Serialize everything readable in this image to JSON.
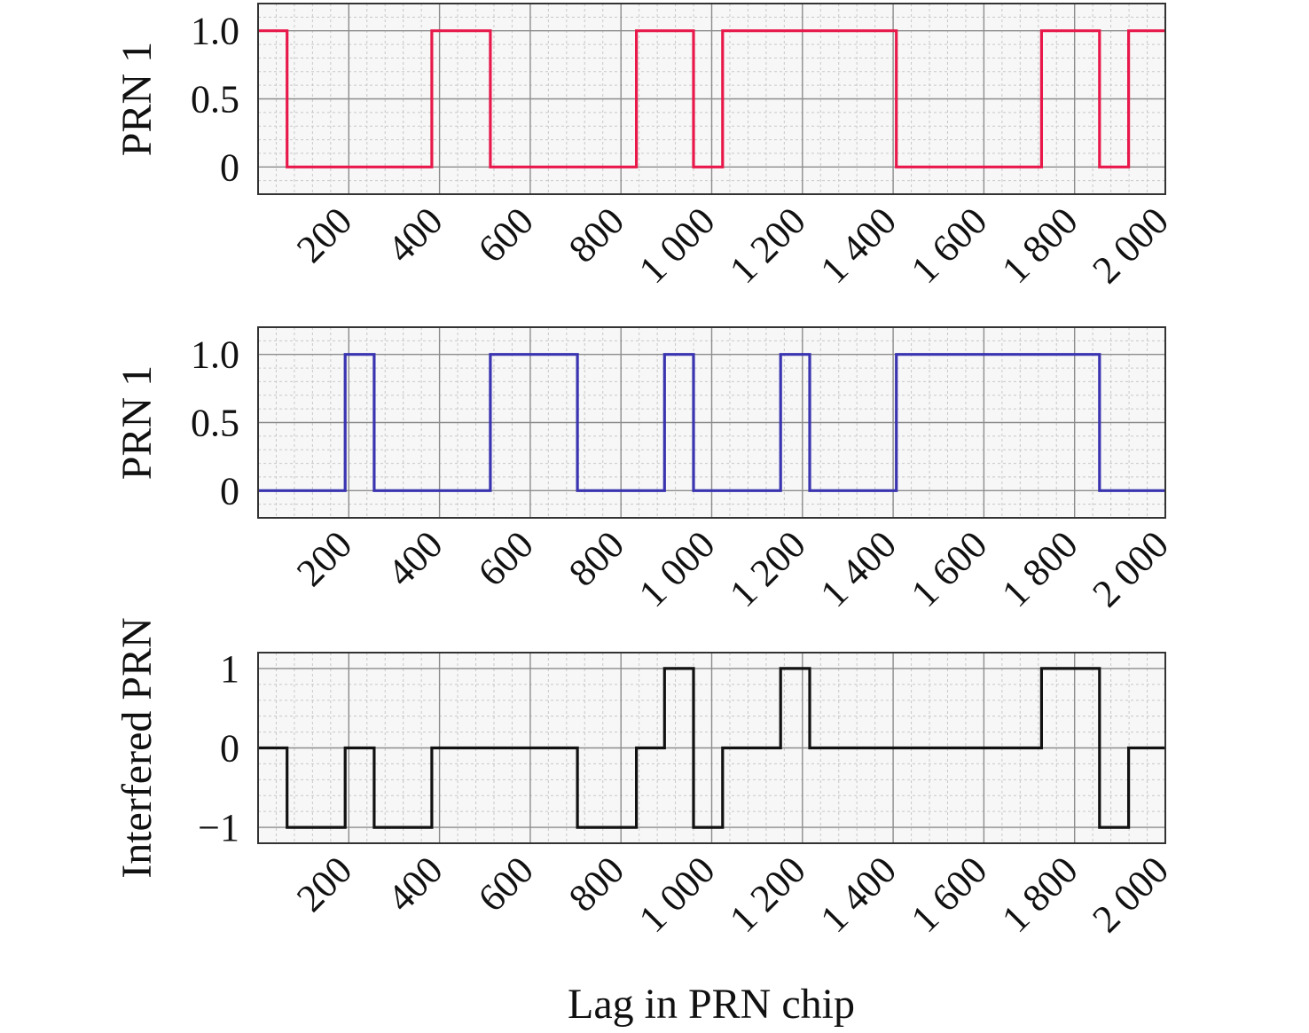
{
  "xlabel": "Lag in PRN chip",
  "colors": {
    "grid_major": "#8c8c8c",
    "grid_minor": "#c8c8c8",
    "frame": "#333333",
    "background": "#f7f7f7"
  },
  "chart_data": [
    {
      "type": "line",
      "step": true,
      "ylabel": "PRN 1",
      "color": "#e8194a",
      "xlim": [
        0,
        2000
      ],
      "ylim": [
        -0.2,
        1.2
      ],
      "yticks": [
        0,
        0.5,
        1.0
      ],
      "ytick_labels": [
        "0",
        "0.5",
        "1.0"
      ],
      "xticks": [
        200,
        400,
        600,
        800,
        1000,
        1200,
        1400,
        1600,
        1800,
        2000
      ],
      "xtick_labels": [
        "200",
        "400",
        "600",
        "800",
        "1 000",
        "1 200",
        "1 400",
        "1 600",
        "1 800",
        "2 000"
      ],
      "grid": true,
      "minor_grid": true,
      "transitions_x": [
        0,
        64,
        383,
        512,
        834,
        960,
        1024,
        1407,
        1727,
        1855,
        1919,
        2000
      ],
      "values": [
        1,
        0,
        1,
        0,
        1,
        0,
        1,
        0,
        1,
        0,
        1
      ]
    },
    {
      "type": "line",
      "step": true,
      "ylabel": "PRN 1",
      "color": "#3a34b0",
      "xlim": [
        0,
        2000
      ],
      "ylim": [
        -0.2,
        1.2
      ],
      "yticks": [
        0,
        0.5,
        1.0
      ],
      "ytick_labels": [
        "0",
        "0.5",
        "1.0"
      ],
      "xticks": [
        200,
        400,
        600,
        800,
        1000,
        1200,
        1400,
        1600,
        1800,
        2000
      ],
      "xtick_labels": [
        "200",
        "400",
        "600",
        "800",
        "1 000",
        "1 200",
        "1 400",
        "1 600",
        "1 800",
        "2 000"
      ],
      "grid": true,
      "minor_grid": true,
      "transitions_x": [
        0,
        192,
        256,
        512,
        704,
        896,
        960,
        1152,
        1216,
        1407,
        1855,
        2000
      ],
      "values": [
        0,
        1,
        0,
        1,
        0,
        1,
        0,
        1,
        0,
        1,
        0
      ]
    },
    {
      "type": "line",
      "step": true,
      "ylabel": "Interfered PRN",
      "color": "#111111",
      "xlim": [
        0,
        2000
      ],
      "ylim": [
        -1.2,
        1.2
      ],
      "yticks": [
        -1,
        0,
        1
      ],
      "ytick_labels": [
        "−1",
        "0",
        "1"
      ],
      "xticks": [
        200,
        400,
        600,
        800,
        1000,
        1200,
        1400,
        1600,
        1800,
        2000
      ],
      "xtick_labels": [
        "200",
        "400",
        "600",
        "800",
        "1 000",
        "1 200",
        "1 400",
        "1 600",
        "1 800",
        "2 000"
      ],
      "grid": true,
      "minor_grid": true,
      "transitions_x": [
        0,
        64,
        192,
        256,
        383,
        704,
        834,
        896,
        960,
        1024,
        1152,
        1216,
        1727,
        1855,
        1919,
        2000
      ],
      "values": [
        0,
        -1,
        0,
        -1,
        0,
        -1,
        0,
        1,
        -1,
        0,
        1,
        0,
        1,
        -1,
        0
      ]
    }
  ]
}
